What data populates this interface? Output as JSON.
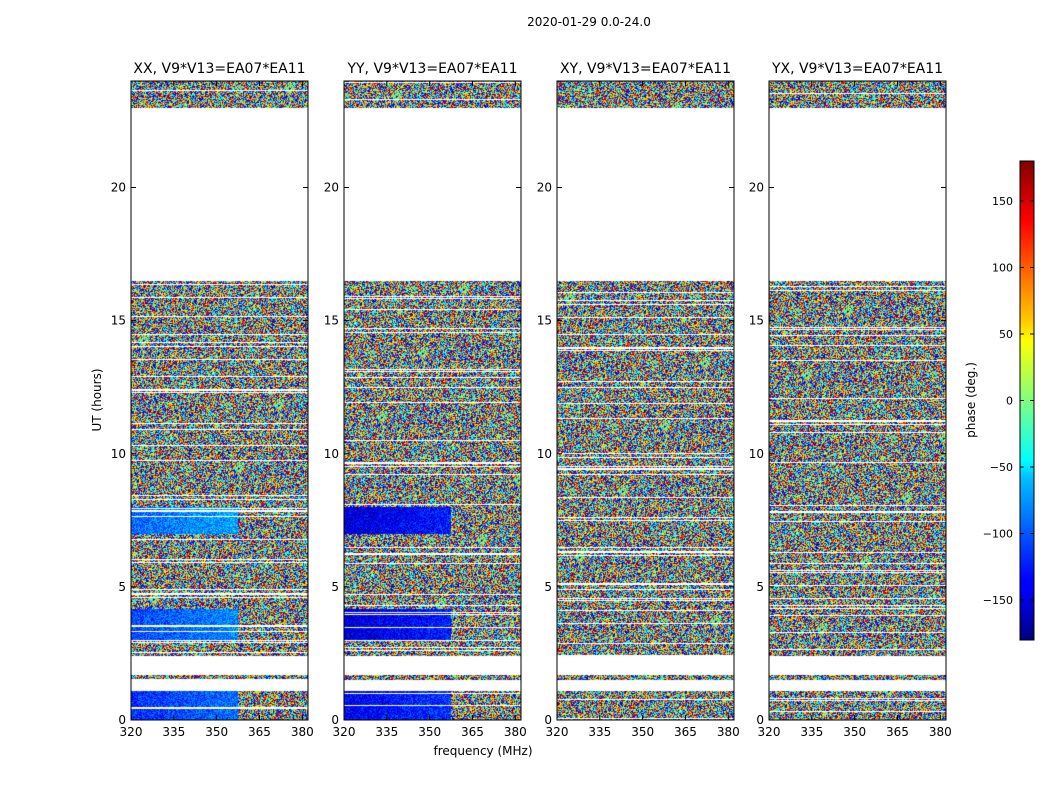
{
  "chart_data": {
    "type": "heatmap",
    "title": "2020-01-29 0.0-24.0",
    "xlabel": "frequency (MHz)",
    "ylabel": "UT (hours)",
    "colorbar_label": "phase (deg.)",
    "colormap": "jet",
    "xlim": [
      320,
      382
    ],
    "ylim": [
      0,
      24
    ],
    "x_ticks": [
      320,
      335,
      350,
      365,
      380
    ],
    "y_ticks": [
      0,
      5,
      10,
      15,
      20
    ],
    "colorbar_range": [
      -180,
      180
    ],
    "colorbar_ticks": [
      150,
      100,
      50,
      0,
      -50,
      -100,
      -150
    ],
    "colorbar_tick_labels": [
      "150",
      "100",
      "50",
      "0",
      "−50",
      "−100",
      "−150"
    ],
    "data_time_ranges_hours": [
      [
        0,
        1.1
      ],
      [
        1.5,
        1.7
      ],
      [
        2.4,
        16.5
      ],
      [
        23.0,
        24.0
      ]
    ],
    "panels": [
      {
        "title": "XX, V9*V13=EA07*EA11",
        "pol": "XX",
        "coherent_phase": [
          [
            0,
            1.1,
            -120
          ],
          [
            3.0,
            4.2,
            -110
          ],
          [
            7.0,
            8.0,
            -100
          ]
        ]
      },
      {
        "title": "YY, V9*V13=EA07*EA11",
        "pol": "YY",
        "coherent_phase": [
          [
            0,
            1.1,
            -140
          ],
          [
            3.0,
            4.2,
            -150
          ],
          [
            7.0,
            8.0,
            -150
          ]
        ]
      },
      {
        "title": "XY, V9*V13=EA07*EA11",
        "pol": "XY",
        "coherent_phase": []
      },
      {
        "title": "YX, V9*V13=EA07*EA11",
        "pol": "YX",
        "coherent_phase": []
      }
    ]
  }
}
